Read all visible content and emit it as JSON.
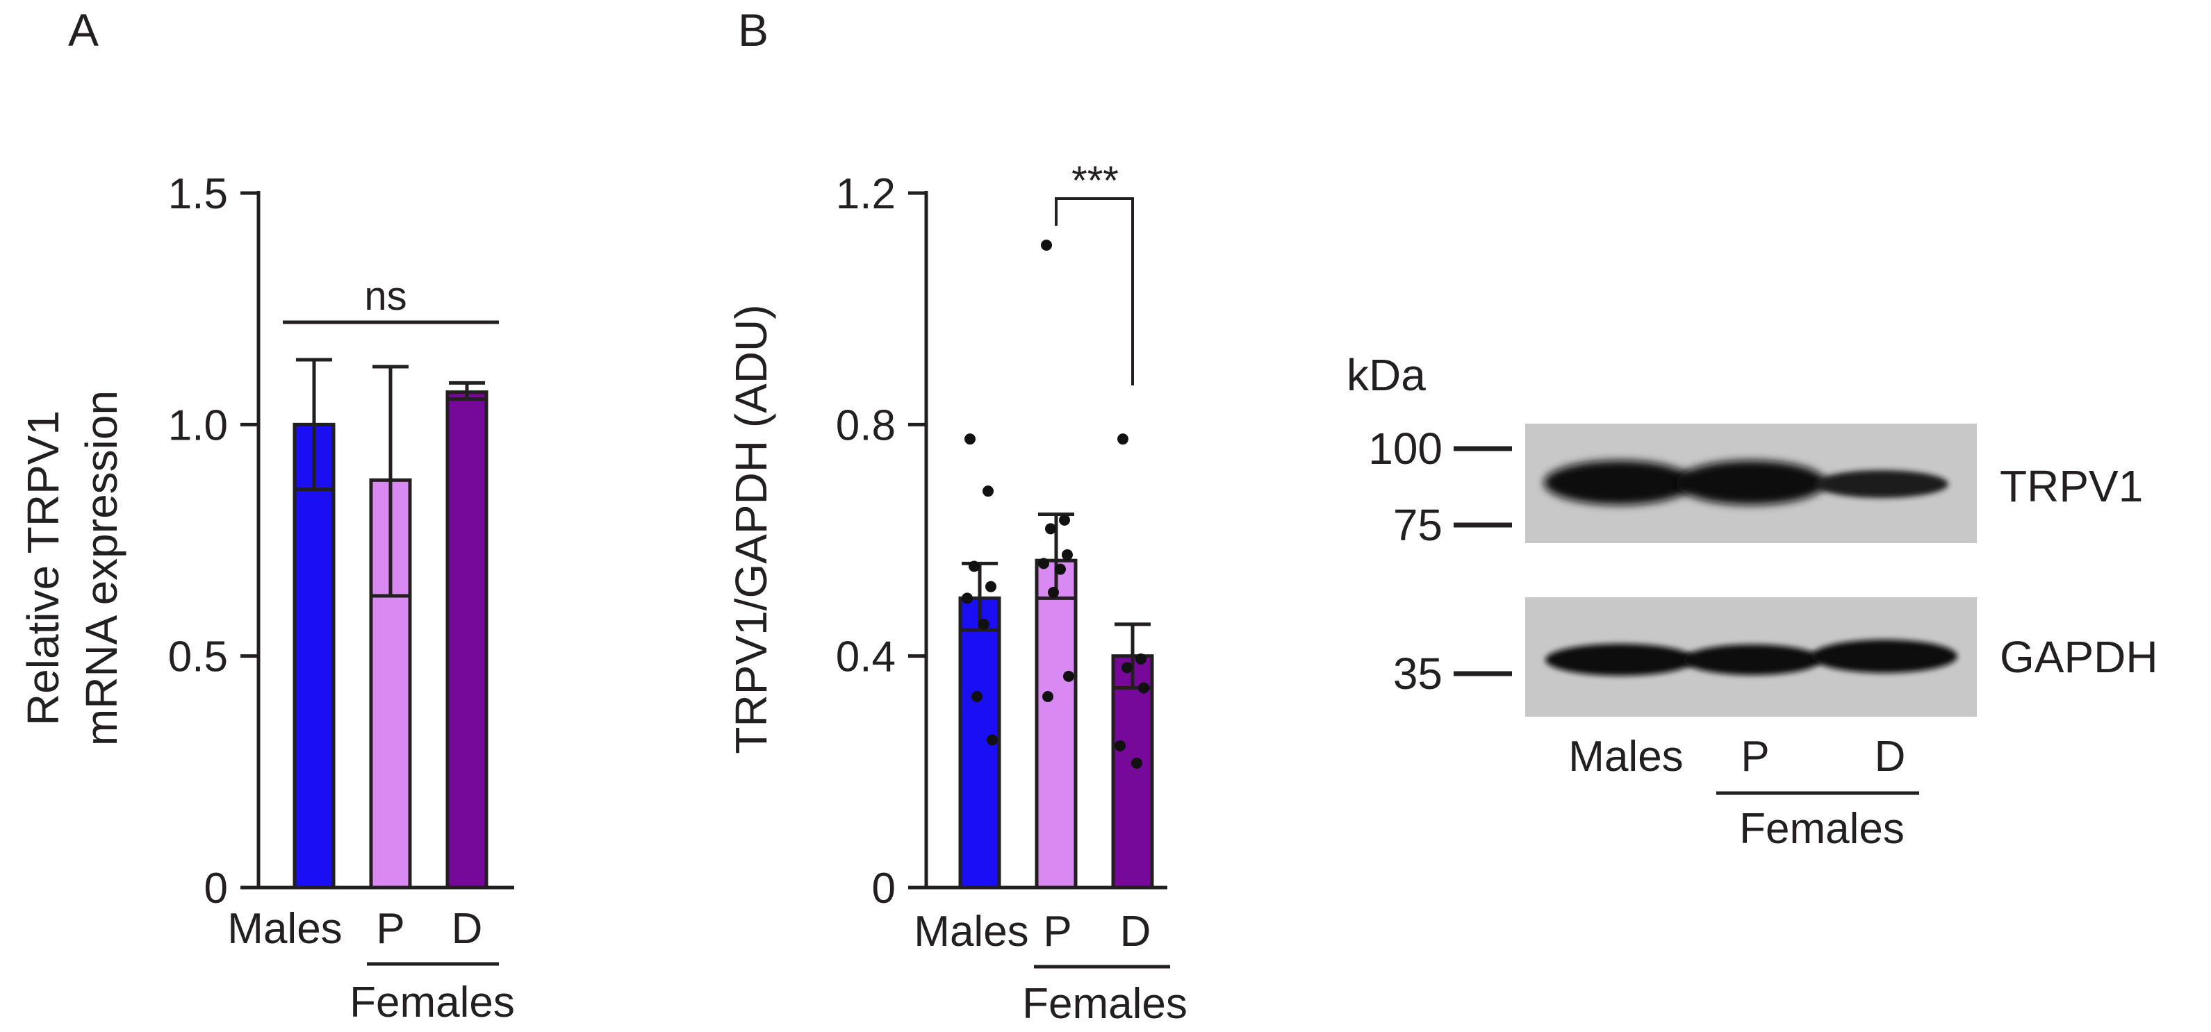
{
  "colors": {
    "males": "#1a0ff2",
    "p": "#d98af2",
    "d": "#76089a",
    "ink": "#231f20"
  },
  "chart_data": [
    {
      "panel": "A",
      "type": "bar",
      "ylabel_line1": "Relative TRPV1",
      "ylabel_line2": "mRNA expression",
      "yticks": [
        "0",
        "0.5",
        "1.0",
        "1.5"
      ],
      "ylim": [
        0,
        1.5
      ],
      "categories": [
        "Males",
        "P",
        "D"
      ],
      "group_label": "Females",
      "values": [
        1.0,
        0.88,
        1.07
      ],
      "error_low": [
        0.86,
        0.63,
        1.055
      ],
      "error_high": [
        1.14,
        1.125,
        1.09
      ],
      "significance": "ns"
    },
    {
      "panel": "B",
      "type": "bar",
      "ylabel": "TRPV1/GAPDH (ADU)",
      "yticks": [
        "0",
        "0.4",
        "0.8",
        "1.2"
      ],
      "ylim": [
        0,
        1.2
      ],
      "categories": [
        "Males",
        "P",
        "D"
      ],
      "group_label": "Females",
      "values": [
        0.5,
        0.565,
        0.4
      ],
      "error_low": [
        0.445,
        0.5,
        0.345
      ],
      "error_high": [
        0.56,
        0.645,
        0.455
      ],
      "points": [
        [
          0.775,
          0.685,
          0.555,
          0.52,
          0.5,
          0.455,
          0.33,
          0.255
        ],
        [
          1.11,
          0.635,
          0.62,
          0.575,
          0.56,
          0.55,
          0.51,
          0.365,
          0.33
        ],
        [
          0.775,
          0.395,
          0.38,
          0.345,
          0.245,
          0.215
        ]
      ],
      "significance": "***"
    }
  ],
  "western_blot": {
    "unit_label": "kDa",
    "markers": [
      "100",
      "75",
      "35"
    ],
    "bands": [
      "TRPV1",
      "GAPDH"
    ],
    "lanes": [
      "Males",
      "P",
      "D"
    ],
    "group_label": "Females"
  }
}
